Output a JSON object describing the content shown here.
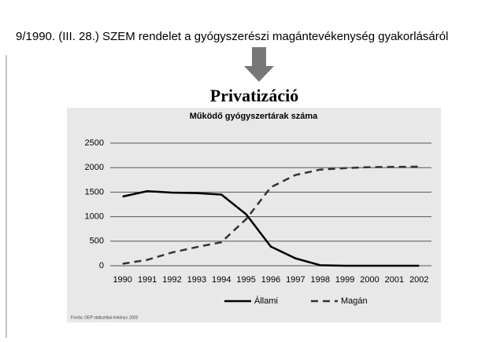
{
  "slide": {
    "decree": "9/1990. (III. 28.) SZEM rendelet a gyógyszerészi magántevékenység gyakorlásáról",
    "heading": "Privatizáció",
    "source": "Forrás: OEP statisztikai évkönyv, 2002"
  },
  "chart_data": {
    "type": "line",
    "title": "Működő gyógyszertárak száma",
    "categories": [
      "1990",
      "1991",
      "1992",
      "1993",
      "1994",
      "1995",
      "1996",
      "1997",
      "1998",
      "1999",
      "2000",
      "2001",
      "2002"
    ],
    "series": [
      {
        "name": "Állami",
        "color": "#000000",
        "dashed": false,
        "values": [
          1410,
          1520,
          1490,
          1480,
          1450,
          1050,
          390,
          150,
          10,
          0,
          0,
          0,
          0
        ]
      },
      {
        "name": "Magán",
        "color": "#333333",
        "dashed": true,
        "values": [
          40,
          120,
          270,
          380,
          480,
          950,
          1600,
          1850,
          1960,
          1990,
          2010,
          2015,
          2020
        ]
      }
    ],
    "ylim": [
      0,
      2500
    ],
    "yticks": [
      0,
      500,
      1000,
      1500,
      2000,
      2500
    ],
    "grid": true,
    "legend": "bottom"
  }
}
